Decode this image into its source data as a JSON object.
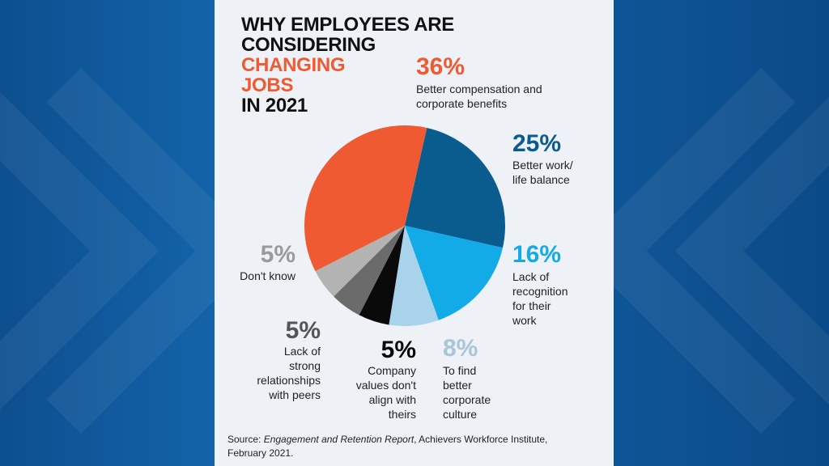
{
  "chart_data": {
    "type": "pie",
    "title_lines": [
      "WHY EMPLOYEES ARE",
      "CONSIDERING",
      "CHANGING",
      "JOBS",
      "IN 2021"
    ],
    "slices": [
      {
        "label": "Better work/ life balance",
        "value": 25,
        "pct_label": "25%",
        "color": "#0b5c8e"
      },
      {
        "label": "Lack of recognition for their work",
        "value": 16,
        "pct_label": "16%",
        "color": "#13aae8"
      },
      {
        "label": "To find better corporate culture",
        "value": 8,
        "pct_label": "8%",
        "color": "#a8d3ea"
      },
      {
        "label": "Company values don't align with theirs",
        "value": 5,
        "pct_label": "5%",
        "color": "#0a0a0a"
      },
      {
        "label": "Lack of strong relationships with peers",
        "value": 5,
        "pct_label": "5%",
        "color": "#6b6b6b"
      },
      {
        "label": "Don't know",
        "value": 5,
        "pct_label": "5%",
        "color": "#b3b3b3"
      },
      {
        "label": "Better compensation and corporate benefits",
        "value": 36,
        "pct_label": "36%",
        "color": "#ef5a32"
      }
    ],
    "start_angle_deg": 12.7
  },
  "label_lines": {
    "s0": [
      "Better work/",
      "life balance"
    ],
    "s1": [
      "Lack of",
      "recognition",
      "for their",
      "work"
    ],
    "s2": [
      "To find",
      "better",
      "corporate",
      "culture"
    ],
    "s3": [
      "Company",
      "values don't",
      "align with",
      "theirs"
    ],
    "s4": [
      "Lack of",
      "strong",
      "relationships",
      "with peers"
    ],
    "s5": [
      "Don't know"
    ],
    "s6": [
      "Better compensation and",
      "corporate benefits"
    ]
  },
  "source": {
    "prefix": "Source: ",
    "report": "Engagement and Retention Report",
    "suffix": ", Achievers Workforce Institute,",
    "line2": "February 2021."
  },
  "pct_colors": {
    "s0": "#0b5c8e",
    "s1": "#13aae8",
    "s2": "#a8c6d8",
    "s3": "#0a0a0a",
    "s4": "#555555",
    "s5": "#9a9a9a",
    "s6": "#ef5a32"
  }
}
